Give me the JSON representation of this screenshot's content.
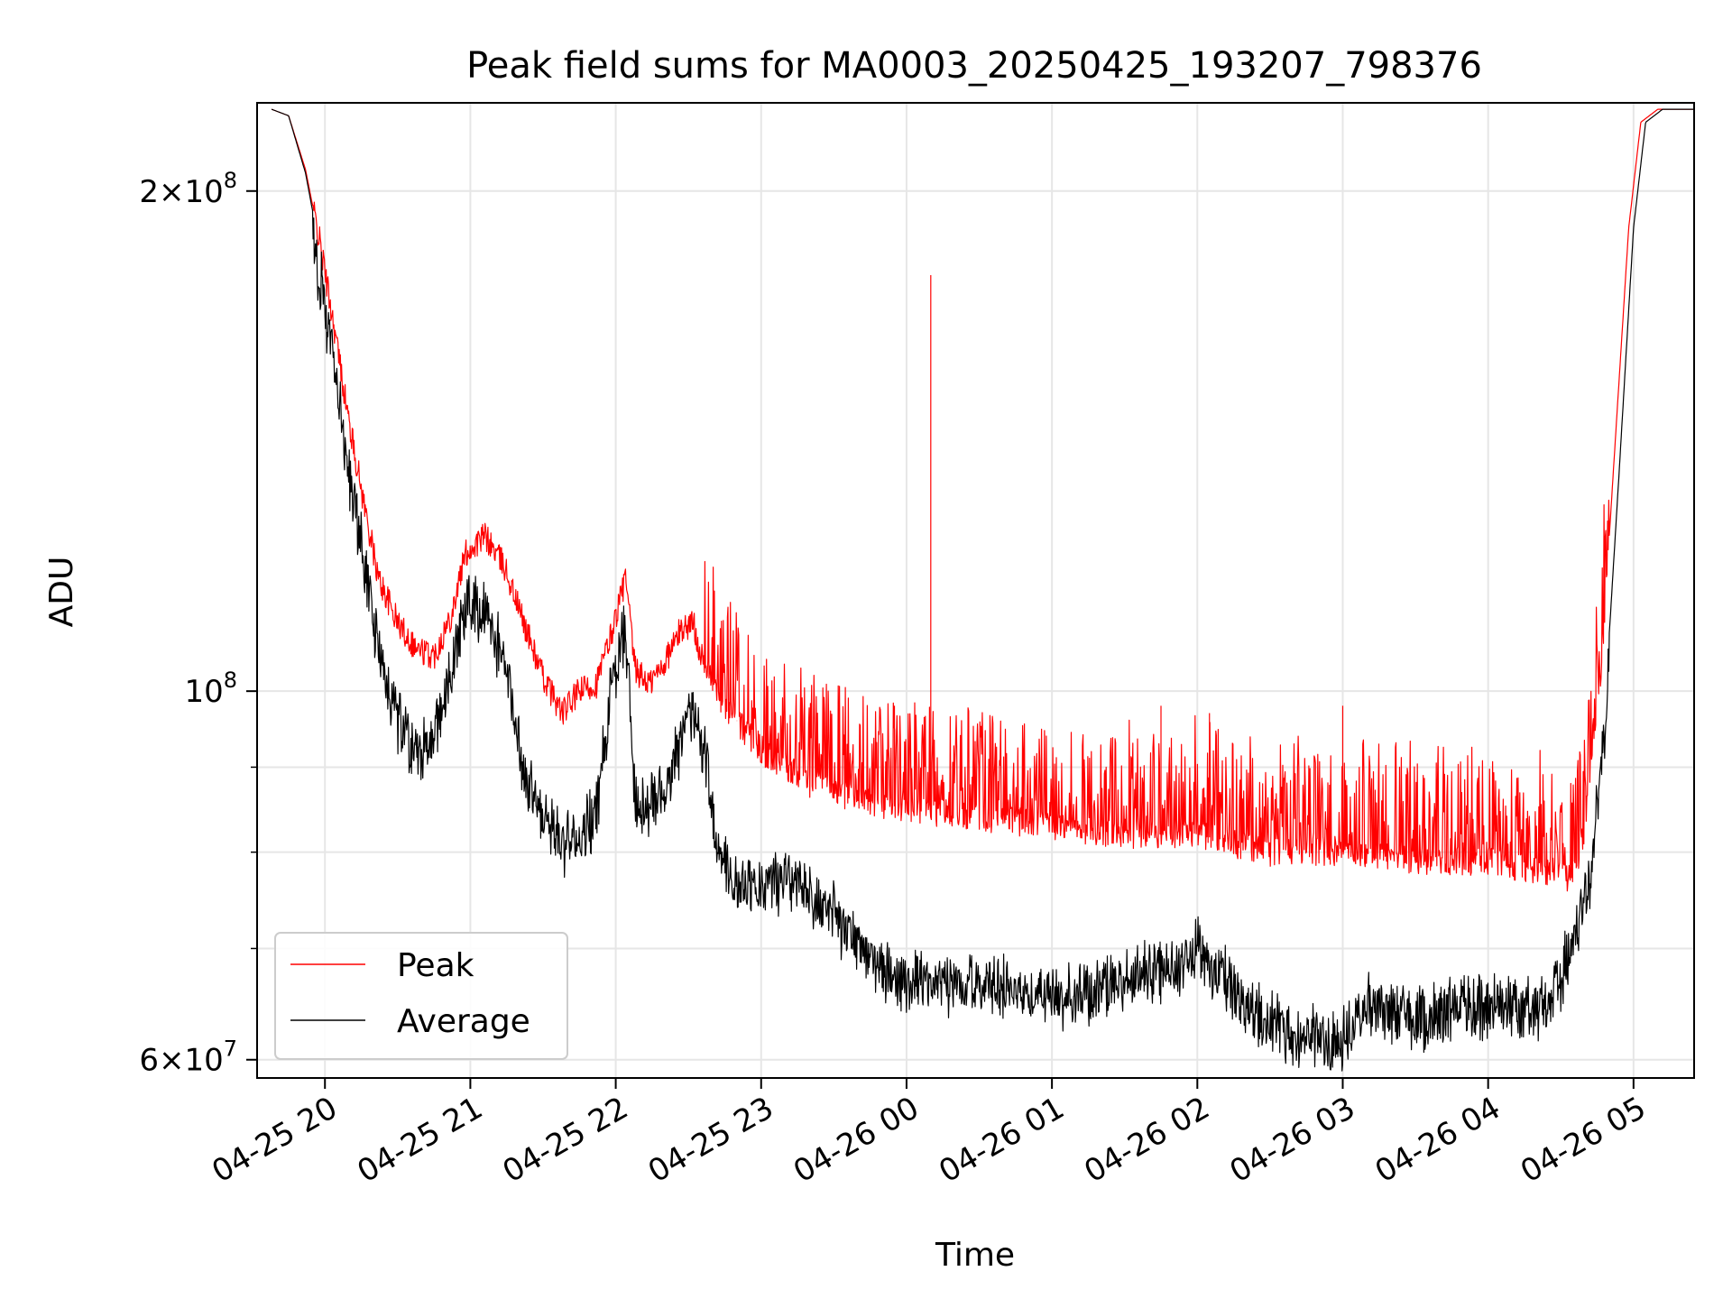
{
  "chart_data": {
    "type": "line",
    "title": "Peak field sums for MA0003_20250425_193207_798376",
    "xlabel": "Time",
    "ylabel": "ADU",
    "y_scale": "log",
    "ylim": [
      58500000,
      226000000
    ],
    "xlim": [
      "2025-04-25 19:32",
      "2025-04-26 05:25"
    ],
    "grid": true,
    "legend_position": "lower-left",
    "x_ticks": [
      {
        "t": "2025-04-25 20:00",
        "label": "04-25 20"
      },
      {
        "t": "2025-04-25 21:00",
        "label": "04-25 21"
      },
      {
        "t": "2025-04-25 22:00",
        "label": "04-25 22"
      },
      {
        "t": "2025-04-25 23:00",
        "label": "04-25 23"
      },
      {
        "t": "2025-04-26 00:00",
        "label": "04-26 00"
      },
      {
        "t": "2025-04-26 01:00",
        "label": "04-26 01"
      },
      {
        "t": "2025-04-26 02:00",
        "label": "04-26 02"
      },
      {
        "t": "2025-04-26 03:00",
        "label": "04-26 03"
      },
      {
        "t": "2025-04-26 04:00",
        "label": "04-26 04"
      },
      {
        "t": "2025-04-26 05:00",
        "label": "04-26 05"
      }
    ],
    "y_major_ticks": [
      {
        "v": 60000000,
        "mant": "6",
        "exp": "7"
      },
      {
        "v": 100000000,
        "mant": "",
        "exp": "8"
      },
      {
        "v": 200000000,
        "mant": "2",
        "exp": "8"
      }
    ],
    "y_minor_ticks": [
      70000000,
      80000000,
      90000000
    ],
    "series": [
      {
        "name": "Peak",
        "color": "#ff0000",
        "points": [
          [
            "2025-04-25 19:38",
            224000000
          ],
          [
            "2025-04-25 19:45",
            222000000
          ],
          [
            "2025-04-25 19:52",
            206000000
          ],
          [
            "2025-04-25 19:58",
            186000000
          ],
          [
            "2025-04-25 20:04",
            165000000
          ],
          [
            "2025-04-25 20:10",
            145000000
          ],
          [
            "2025-04-25 20:16",
            130000000
          ],
          [
            "2025-04-25 20:22",
            117000000
          ],
          [
            "2025-04-25 20:30",
            110000000
          ],
          [
            "2025-04-25 20:38",
            106000000
          ],
          [
            "2025-04-25 20:45",
            105000000
          ],
          [
            "2025-04-25 20:52",
            111000000
          ],
          [
            "2025-04-25 20:58",
            121000000
          ],
          [
            "2025-04-25 21:06",
            124000000
          ],
          [
            "2025-04-25 21:14",
            119000000
          ],
          [
            "2025-04-25 21:22",
            110000000
          ],
          [
            "2025-04-25 21:30",
            102000000
          ],
          [
            "2025-04-25 21:38",
            97000000
          ],
          [
            "2025-04-25 21:45",
            100000000
          ],
          [
            "2025-04-25 21:52",
            101000000
          ],
          [
            "2025-04-25 21:58",
            108000000
          ],
          [
            "2025-04-25 22:04",
            117000000
          ],
          [
            "2025-04-25 22:08",
            103000000
          ],
          [
            "2025-04-25 22:14",
            101000000
          ],
          [
            "2025-04-25 22:20",
            104000000
          ],
          [
            "2025-04-25 22:27",
            109000000
          ],
          [
            "2025-04-25 22:32",
            110000000
          ],
          [
            "2025-04-25 22:36",
            104000000
          ],
          [
            "2025-04-25 22:45",
            98000000
          ],
          [
            "2025-04-25 23:00",
            92000000
          ],
          [
            "2025-04-25 23:20",
            88000000
          ],
          [
            "2025-04-25 23:40",
            86000000
          ],
          [
            "2025-04-26 00:00",
            85000000
          ],
          [
            "2025-04-26 00:30",
            84000000
          ],
          [
            "2025-04-26 01:00",
            83000000
          ],
          [
            "2025-04-26 01:30",
            82000000
          ],
          [
            "2025-04-26 02:00",
            82000000
          ],
          [
            "2025-04-26 02:30",
            80000000
          ],
          [
            "2025-04-26 03:00",
            80000000
          ],
          [
            "2025-04-26 03:30",
            79000000
          ],
          [
            "2025-04-26 04:00",
            79000000
          ],
          [
            "2025-04-26 04:20",
            78000000
          ],
          [
            "2025-04-26 04:35",
            77000000
          ],
          [
            "2025-04-26 04:40",
            83000000
          ],
          [
            "2025-04-26 04:46",
            100000000
          ],
          [
            "2025-04-26 04:52",
            138000000
          ],
          [
            "2025-04-26 04:58",
            190000000
          ],
          [
            "2025-04-26 05:03",
            220000000
          ],
          [
            "2025-04-26 05:10",
            224000000
          ],
          [
            "2025-04-26 05:25",
            224000000
          ]
        ]
      },
      {
        "name": "Average",
        "color": "#000000",
        "points": [
          [
            "2025-04-25 19:38",
            224000000
          ],
          [
            "2025-04-25 19:45",
            222000000
          ],
          [
            "2025-04-25 19:52",
            205000000
          ],
          [
            "2025-04-25 19:58",
            184000000
          ],
          [
            "2025-04-25 20:04",
            162000000
          ],
          [
            "2025-04-25 20:10",
            141000000
          ],
          [
            "2025-04-25 20:16",
            124000000
          ],
          [
            "2025-04-25 20:22",
            110000000
          ],
          [
            "2025-04-25 20:30",
            100000000
          ],
          [
            "2025-04-25 20:38",
            94000000
          ],
          [
            "2025-04-25 20:45",
            97000000
          ],
          [
            "2025-04-25 20:52",
            107000000
          ],
          [
            "2025-04-25 20:58",
            117000000
          ],
          [
            "2025-04-25 21:06",
            116000000
          ],
          [
            "2025-04-25 21:14",
            108000000
          ],
          [
            "2025-04-25 21:22",
            93000000
          ],
          [
            "2025-04-25 21:30",
            87000000
          ],
          [
            "2025-04-25 21:38",
            84000000
          ],
          [
            "2025-04-25 21:45",
            84000000
          ],
          [
            "2025-04-25 21:52",
            88000000
          ],
          [
            "2025-04-25 21:58",
            103000000
          ],
          [
            "2025-04-25 22:04",
            113000000
          ],
          [
            "2025-04-25 22:08",
            90000000
          ],
          [
            "2025-04-25 22:14",
            88000000
          ],
          [
            "2025-04-25 22:20",
            91000000
          ],
          [
            "2025-04-25 22:27",
            97000000
          ],
          [
            "2025-04-25 22:32",
            101000000
          ],
          [
            "2025-04-25 22:36",
            96000000
          ],
          [
            "2025-04-25 22:42",
            84000000
          ],
          [
            "2025-04-25 22:50",
            79000000
          ],
          [
            "2025-04-25 23:00",
            79000000
          ],
          [
            "2025-04-25 23:10",
            80000000
          ],
          [
            "2025-04-25 23:20",
            78000000
          ],
          [
            "2025-04-25 23:30",
            76000000
          ],
          [
            "2025-04-25 23:40",
            73000000
          ],
          [
            "2025-04-25 23:50",
            70000000
          ],
          [
            "2025-04-26 00:00",
            69000000
          ],
          [
            "2025-04-26 00:30",
            69000000
          ],
          [
            "2025-04-26 01:00",
            68000000
          ],
          [
            "2025-04-26 01:30",
            69000000
          ],
          [
            "2025-04-26 01:50",
            71000000
          ],
          [
            "2025-04-26 02:00",
            73000000
          ],
          [
            "2025-04-26 02:10",
            70000000
          ],
          [
            "2025-04-26 02:20",
            67000000
          ],
          [
            "2025-04-26 02:40",
            64000000
          ],
          [
            "2025-04-26 03:00",
            64000000
          ],
          [
            "2025-04-26 03:10",
            67000000
          ],
          [
            "2025-04-26 03:30",
            66000000
          ],
          [
            "2025-04-26 03:50",
            67000000
          ],
          [
            "2025-04-26 04:10",
            67000000
          ],
          [
            "2025-04-26 04:25",
            67000000
          ],
          [
            "2025-04-26 04:35",
            73000000
          ],
          [
            "2025-04-26 04:42",
            80000000
          ],
          [
            "2025-04-26 04:48",
            97000000
          ],
          [
            "2025-04-26 04:54",
            135000000
          ],
          [
            "2025-04-26 05:00",
            190000000
          ],
          [
            "2025-04-26 05:05",
            220000000
          ],
          [
            "2025-04-26 05:12",
            224000000
          ],
          [
            "2025-04-26 05:25",
            224000000
          ]
        ]
      }
    ],
    "peak_spikes": [
      [
        "2025-04-26 00:10",
        178000000
      ],
      [
        "2025-04-25 23:55",
        98000000
      ],
      [
        "2025-04-26 01:45",
        98000000
      ],
      [
        "2025-04-26 03:00",
        98000000
      ],
      [
        "2025-04-26 02:05",
        97000000
      ],
      [
        "2025-04-25 22:50",
        96000000
      ]
    ]
  }
}
